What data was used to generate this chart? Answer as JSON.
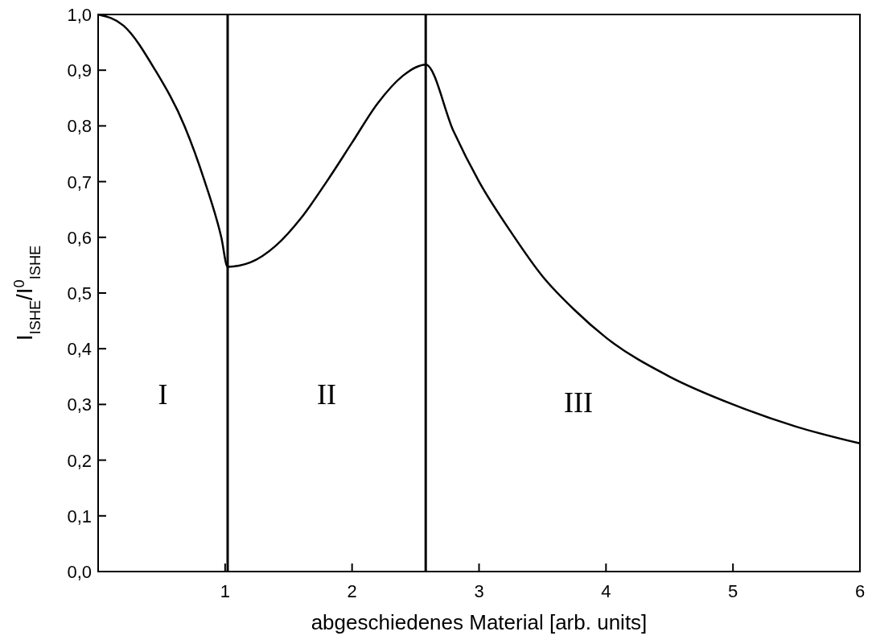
{
  "chart_data": {
    "type": "line",
    "xlabel": "abgeschiedenes Material [arb. units]",
    "ylabel": "I$_{ISHE}$/I$^{0}$$_{ISHE}$",
    "series": [
      {
        "color": "#000000",
        "x": [
          0,
          0.2,
          0.45,
          0.68,
          0.84,
          0.97,
          1.02,
          1.2,
          1.4,
          1.6,
          1.8,
          2.0,
          2.2,
          2.4,
          2.5,
          2.58,
          2.8,
          3.0,
          3.25,
          3.5,
          3.75,
          4.0,
          4.5,
          5.0,
          5.5,
          6.0
        ],
        "values": [
          1.0,
          0.98,
          0.9,
          0.8,
          0.7,
          0.6,
          0.547,
          0.555,
          0.585,
          0.635,
          0.7,
          0.77,
          0.84,
          0.89,
          0.905,
          0.91,
          0.79,
          0.7,
          0.61,
          0.53,
          0.47,
          0.42,
          0.35,
          0.3,
          0.26,
          0.23
        ]
      }
    ],
    "xlim": [
      0,
      6
    ],
    "xticks": [
      {
        "value": 0,
        "label": null
      },
      1,
      2,
      3,
      4,
      5,
      6
    ],
    "ylim": [
      0,
      1
    ],
    "yticks": [
      {
        "value": 0,
        "label": "0,0"
      },
      {
        "value": 0.1,
        "label": "0,1"
      },
      {
        "value": 0.2,
        "label": "0,2"
      },
      {
        "value": 0.3,
        "label": "0,3"
      },
      {
        "value": 0.4,
        "label": "0,4"
      },
      {
        "value": 0.5,
        "label": "0,5"
      },
      {
        "value": 0.6,
        "label": "0,6"
      },
      {
        "value": 0.7,
        "label": "0,7"
      },
      {
        "value": 0.8,
        "label": "0,8"
      },
      {
        "value": 0.9,
        "label": "0,9"
      },
      {
        "value": 1,
        "label": "1,0"
      }
    ],
    "ref_lines": [
      {
        "axis": "x",
        "value": 1.02,
        "color": "#000000"
      },
      {
        "axis": "x",
        "value": 2.58,
        "color": "#000000"
      }
    ],
    "annotations": [
      "I",
      "II",
      "III"
    ],
    "grid": false,
    "marker": "none",
    "line_style": "solid"
  }
}
